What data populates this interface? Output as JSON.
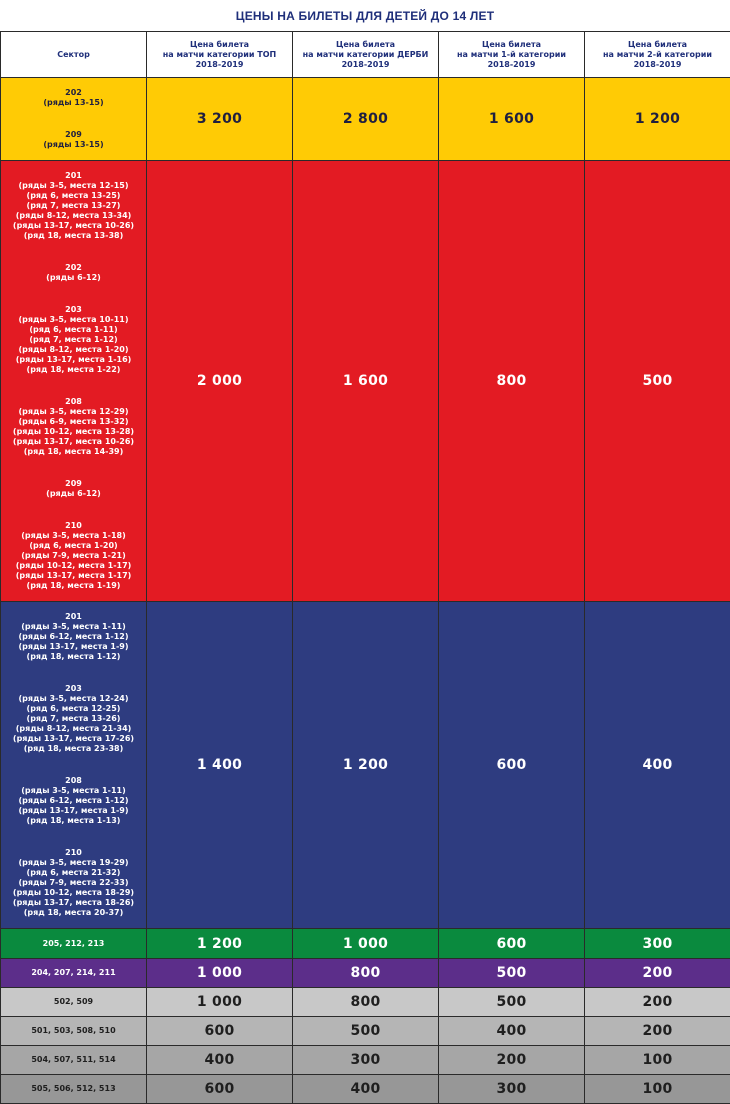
{
  "title": "ЦЕНЫ НА БИЛЕТЫ ДЛЯ ДЕТЕЙ ДО 14 ЛЕТ",
  "headers": [
    "Сектор",
    "Цена билета\nна матчи категории ТОП\n2018-2019",
    "Цена билета\nна матчи категории ДЕРБИ\n2018-2019",
    "Цена билета\nна матчи 1-й категории\n2018-2019",
    "Цена билета\nна матчи 2-й категории\n2018-2019"
  ],
  "rows": [
    {
      "sector_groups": [
        "202\n(ряды 13-15)",
        "209\n(ряды 13-15)"
      ],
      "prices": [
        "3 200",
        "2 800",
        "1 600",
        "1 200"
      ]
    },
    {
      "sector_groups": [
        "201\n(ряды 3-5, места 12-15)\n(ряд 6, места 13-25)\n(ряд 7, места 13-27)\n(ряды 8-12, места 13-34)\n(ряды 13-17, места 10-26)\n(ряд 18, места 13-38)",
        "202\n(ряды 6-12)",
        "203\n(ряды 3-5, места 10-11)\n(ряд 6, места 1-11)\n(ряд 7, места 1-12)\n(ряды 8-12, места 1-20)\n(ряды 13-17, места 1-16)\n(ряд 18, места 1-22)",
        "208\n(ряды 3-5, места 12-29)\n(ряды 6-9, места 13-32)\n(ряды 10-12, места 13-28)\n(ряды 13-17, места 10-26)\n(ряд 18, места 14-39)",
        "209\n(ряды 6-12)",
        "210\n(ряды 3-5, места 1-18)\n(ряд 6, места 1-20)\n(ряды 7-9, места 1-21)\n(ряды 10-12, места 1-17)\n(ряды 13-17, места 1-17)\n(ряд 18, места 1-19)"
      ],
      "prices": [
        "2 000",
        "1 600",
        "800",
        "500"
      ]
    },
    {
      "sector_groups": [
        "201\n(ряды 3-5, места 1-11)\n(ряды 6-12, места 1-12)\n(ряды 13-17, места 1-9)\n(ряд 18, места 1-12)",
        "203\n(ряды 3-5, места 12-24)\n(ряд 6, места 12-25)\n(ряд 7, места 13-26)\n(ряды 8-12, места 21-34)\n(ряды 13-17, места 17-26)\n(ряд 18, места 23-38)",
        "208\n(ряды 3-5, места 1-11)\n(ряды 6-12, места 1-12)\n(ряды 13-17, места 1-9)\n(ряд 18, места 1-13)",
        "210\n(ряды 3-5, места 19-29)\n(ряд 6, места 21-32)\n(ряды 7-9, места 22-33)\n(ряды 10-12, места 18-29)\n(ряды 13-17, места 18-26)\n(ряд 18, места 20-37)"
      ],
      "prices": [
        "1 400",
        "1 200",
        "600",
        "400"
      ]
    },
    {
      "sector_groups": [
        "205, 212, 213"
      ],
      "prices": [
        "1 200",
        "1 000",
        "600",
        "300"
      ]
    },
    {
      "sector_groups": [
        "204, 207, 214, 211"
      ],
      "prices": [
        "1 000",
        "800",
        "500",
        "200"
      ]
    },
    {
      "sector_groups": [
        "502, 509"
      ],
      "prices": [
        "1 000",
        "800",
        "500",
        "200"
      ]
    },
    {
      "sector_groups": [
        "501, 503, 508, 510"
      ],
      "prices": [
        "600",
        "500",
        "400",
        "200"
      ]
    },
    {
      "sector_groups": [
        "504, 507, 511, 514"
      ],
      "prices": [
        "400",
        "300",
        "200",
        "100"
      ]
    },
    {
      "sector_groups": [
        "505, 506, 512, 513"
      ],
      "prices": [
        "600",
        "400",
        "300",
        "100"
      ]
    }
  ],
  "colors": {
    "title_text": "#1f2f7a",
    "yellow": "#ffcb05",
    "red": "#e31b23",
    "navy": "#2e3c80",
    "green": "#0a8a3e",
    "purple": "#5c2e8a",
    "gray": "#c8c8c8"
  }
}
